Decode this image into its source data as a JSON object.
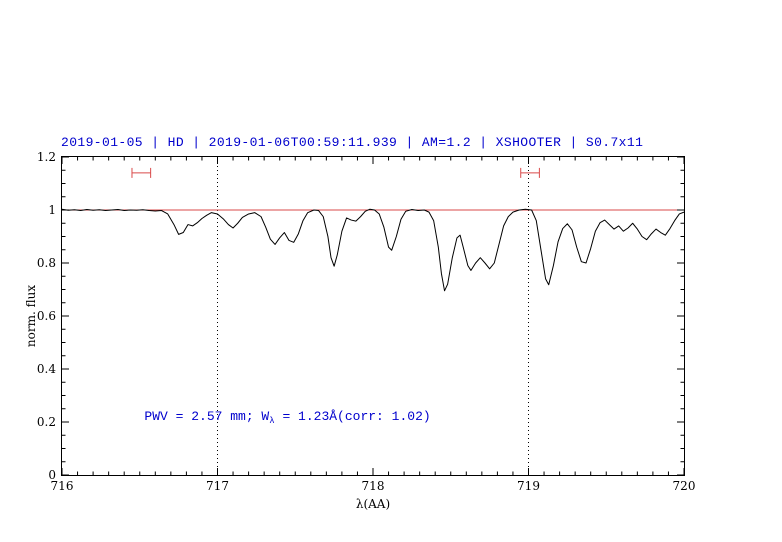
{
  "chart_data": {
    "type": "line",
    "title": "2019-01-05 | HD | 2019-01-06T00:59:11.939 | AM=1.2 | XSHOOTER | S0.7x11",
    "title_color": "#0000cd",
    "xlabel": "λ(AA)",
    "ylabel": "norm. flux",
    "xlim": [
      716,
      720
    ],
    "ylim": [
      0,
      1.2
    ],
    "x_ticks": [
      716,
      717,
      718,
      719,
      720
    ],
    "x_tick_labels": [
      "716",
      "717",
      "718",
      "719",
      "720"
    ],
    "x_minor_step": 0.1,
    "y_ticks": [
      0,
      0.2,
      0.4,
      0.6,
      0.8,
      1,
      1.2
    ],
    "y_tick_labels": [
      "0",
      "0.2",
      "0.4",
      "0.6",
      "0.8",
      "1",
      "1.2"
    ],
    "y_minor_step": 0.05,
    "grid": false,
    "legend": null,
    "reference_line_y": 1.0,
    "reference_line_color": "#d94a4a",
    "dotted_vlines_x": [
      717,
      719
    ],
    "interval_markers": [
      {
        "x_start": 716.45,
        "x_end": 716.57,
        "y": 1.14,
        "color": "#d94a4a"
      },
      {
        "x_start": 718.95,
        "x_end": 719.07,
        "y": 1.14,
        "color": "#d94a4a"
      }
    ],
    "annotation": {
      "text_prefix": "PWV = 2.57 mm; W",
      "text_subscript": "λ",
      "text_suffix": " = 1.23Å(corr: 1.02)",
      "full_text": "PWV = 2.57 mm; W_λ = 1.23Å(corr: 1.02)",
      "color": "#0000cd",
      "x": 716.53,
      "y": 0.2
    },
    "series": [
      {
        "name": "normalized-telluric-spectrum",
        "color": "#000000",
        "points": [
          [
            716.0,
            1.003
          ],
          [
            716.04,
            0.999
          ],
          [
            716.08,
            1.001
          ],
          [
            716.12,
            0.998
          ],
          [
            716.16,
            1.002
          ],
          [
            716.2,
            0.999
          ],
          [
            716.24,
            1.001
          ],
          [
            716.28,
            0.998
          ],
          [
            716.32,
            1.0
          ],
          [
            716.36,
            1.002
          ],
          [
            716.4,
            0.998
          ],
          [
            716.44,
            1.0
          ],
          [
            716.48,
            0.999
          ],
          [
            716.52,
            1.001
          ],
          [
            716.56,
            0.998
          ],
          [
            716.6,
            0.996
          ],
          [
            716.64,
            0.998
          ],
          [
            716.68,
            0.985
          ],
          [
            716.72,
            0.945
          ],
          [
            716.75,
            0.908
          ],
          [
            716.78,
            0.915
          ],
          [
            716.81,
            0.945
          ],
          [
            716.84,
            0.94
          ],
          [
            716.87,
            0.952
          ],
          [
            716.9,
            0.968
          ],
          [
            716.93,
            0.98
          ],
          [
            716.96,
            0.99
          ],
          [
            717.0,
            0.985
          ],
          [
            717.04,
            0.965
          ],
          [
            717.07,
            0.945
          ],
          [
            717.1,
            0.932
          ],
          [
            717.13,
            0.95
          ],
          [
            717.16,
            0.972
          ],
          [
            717.2,
            0.985
          ],
          [
            717.24,
            0.99
          ],
          [
            717.28,
            0.975
          ],
          [
            717.31,
            0.935
          ],
          [
            717.34,
            0.89
          ],
          [
            717.37,
            0.87
          ],
          [
            717.4,
            0.895
          ],
          [
            717.43,
            0.915
          ],
          [
            717.46,
            0.885
          ],
          [
            717.49,
            0.878
          ],
          [
            717.52,
            0.91
          ],
          [
            717.55,
            0.96
          ],
          [
            717.58,
            0.99
          ],
          [
            717.62,
            1.0
          ],
          [
            717.65,
            0.998
          ],
          [
            717.68,
            0.975
          ],
          [
            717.71,
            0.9
          ],
          [
            717.73,
            0.82
          ],
          [
            717.75,
            0.788
          ],
          [
            717.77,
            0.83
          ],
          [
            717.8,
            0.92
          ],
          [
            717.83,
            0.97
          ],
          [
            717.86,
            0.962
          ],
          [
            717.89,
            0.958
          ],
          [
            717.92,
            0.975
          ],
          [
            717.95,
            0.995
          ],
          [
            717.98,
            1.003
          ],
          [
            718.01,
            1.0
          ],
          [
            718.04,
            0.985
          ],
          [
            718.07,
            0.935
          ],
          [
            718.1,
            0.86
          ],
          [
            718.12,
            0.848
          ],
          [
            718.15,
            0.9
          ],
          [
            718.18,
            0.965
          ],
          [
            718.21,
            0.995
          ],
          [
            718.25,
            1.002
          ],
          [
            718.29,
            0.998
          ],
          [
            718.33,
            1.0
          ],
          [
            718.36,
            0.992
          ],
          [
            718.39,
            0.96
          ],
          [
            718.42,
            0.86
          ],
          [
            718.44,
            0.76
          ],
          [
            718.46,
            0.695
          ],
          [
            718.48,
            0.72
          ],
          [
            718.51,
            0.82
          ],
          [
            718.54,
            0.895
          ],
          [
            718.56,
            0.905
          ],
          [
            718.58,
            0.86
          ],
          [
            718.61,
            0.79
          ],
          [
            718.63,
            0.772
          ],
          [
            718.66,
            0.8
          ],
          [
            718.69,
            0.82
          ],
          [
            718.72,
            0.8
          ],
          [
            718.75,
            0.778
          ],
          [
            718.78,
            0.8
          ],
          [
            718.81,
            0.87
          ],
          [
            718.84,
            0.94
          ],
          [
            718.87,
            0.975
          ],
          [
            718.9,
            0.992
          ],
          [
            718.94,
            1.0
          ],
          [
            718.98,
            1.003
          ],
          [
            719.02,
            1.0
          ],
          [
            719.05,
            0.96
          ],
          [
            719.08,
            0.85
          ],
          [
            719.11,
            0.74
          ],
          [
            719.13,
            0.718
          ],
          [
            719.16,
            0.79
          ],
          [
            719.19,
            0.88
          ],
          [
            719.22,
            0.93
          ],
          [
            719.25,
            0.948
          ],
          [
            719.28,
            0.925
          ],
          [
            719.31,
            0.86
          ],
          [
            719.34,
            0.805
          ],
          [
            719.37,
            0.8
          ],
          [
            719.4,
            0.855
          ],
          [
            719.43,
            0.92
          ],
          [
            719.46,
            0.952
          ],
          [
            719.49,
            0.962
          ],
          [
            719.52,
            0.945
          ],
          [
            719.55,
            0.928
          ],
          [
            719.58,
            0.94
          ],
          [
            719.61,
            0.92
          ],
          [
            719.64,
            0.932
          ],
          [
            719.67,
            0.95
          ],
          [
            719.7,
            0.928
          ],
          [
            719.73,
            0.9
          ],
          [
            719.76,
            0.888
          ],
          [
            719.79,
            0.91
          ],
          [
            719.82,
            0.928
          ],
          [
            719.85,
            0.915
          ],
          [
            719.88,
            0.905
          ],
          [
            719.91,
            0.93
          ],
          [
            719.94,
            0.96
          ],
          [
            719.97,
            0.985
          ],
          [
            720.0,
            0.992
          ]
        ]
      }
    ]
  }
}
